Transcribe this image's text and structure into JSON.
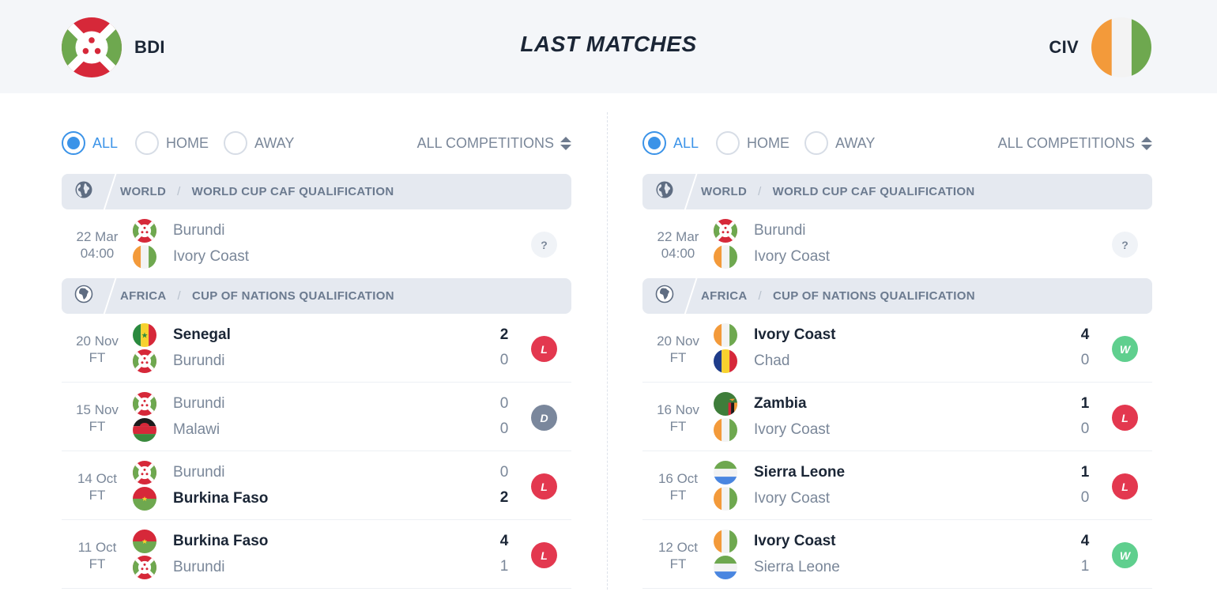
{
  "header": {
    "title": "LAST MATCHES",
    "home_code": "BDI",
    "away_code": "CIV"
  },
  "filters": {
    "all": "ALL",
    "home": "HOME",
    "away": "AWAY",
    "competitions": "ALL COMPETITIONS",
    "selected": "ALL"
  },
  "colors": {
    "accent": "#3b93e8",
    "loss": "#e3384f",
    "win": "#5fcf8e",
    "draw": "#7a879c"
  },
  "panels": {
    "left": {
      "groups": {
        "world": {
          "icon": "globe-icon",
          "region": "WORLD",
          "competition": "WORLD CUP CAF QUALIFICATION",
          "matches": [
            {
              "date": "22 Mar",
              "status": "04:00",
              "team1": "Burundi",
              "flag1": "burundi",
              "team2": "Ivory Coast",
              "flag2": "ivory-coast",
              "score1": "",
              "score2": "",
              "result": "?",
              "winner": 0
            }
          ]
        },
        "africa": {
          "icon": "africa-icon",
          "region": "AFRICA",
          "competition": "CUP OF NATIONS QUALIFICATION",
          "matches": [
            {
              "date": "20 Nov",
              "status": "FT",
              "team1": "Senegal",
              "flag1": "senegal",
              "team2": "Burundi",
              "flag2": "burundi",
              "score1": "2",
              "score2": "0",
              "result": "L",
              "winner": 1
            },
            {
              "date": "15 Nov",
              "status": "FT",
              "team1": "Burundi",
              "flag1": "burundi",
              "team2": "Malawi",
              "flag2": "malawi",
              "score1": "0",
              "score2": "0",
              "result": "D",
              "winner": 0
            },
            {
              "date": "14 Oct",
              "status": "FT",
              "team1": "Burundi",
              "flag1": "burundi",
              "team2": "Burkina Faso",
              "flag2": "burkina-faso",
              "score1": "0",
              "score2": "2",
              "result": "L",
              "winner": 2
            },
            {
              "date": "11 Oct",
              "status": "FT",
              "team1": "Burkina Faso",
              "flag1": "burkina-faso",
              "team2": "Burundi",
              "flag2": "burundi",
              "score1": "4",
              "score2": "1",
              "result": "L",
              "winner": 1
            }
          ]
        }
      }
    },
    "right": {
      "groups": {
        "world": {
          "icon": "globe-icon",
          "region": "WORLD",
          "competition": "WORLD CUP CAF QUALIFICATION",
          "matches": [
            {
              "date": "22 Mar",
              "status": "04:00",
              "team1": "Burundi",
              "flag1": "burundi",
              "team2": "Ivory Coast",
              "flag2": "ivory-coast",
              "score1": "",
              "score2": "",
              "result": "?",
              "winner": 0
            }
          ]
        },
        "africa": {
          "icon": "africa-icon",
          "region": "AFRICA",
          "competition": "CUP OF NATIONS QUALIFICATION",
          "matches": [
            {
              "date": "20 Nov",
              "status": "FT",
              "team1": "Ivory Coast",
              "flag1": "ivory-coast",
              "team2": "Chad",
              "flag2": "chad",
              "score1": "4",
              "score2": "0",
              "result": "W",
              "winner": 1
            },
            {
              "date": "16 Nov",
              "status": "FT",
              "team1": "Zambia",
              "flag1": "zambia",
              "team2": "Ivory Coast",
              "flag2": "ivory-coast",
              "score1": "1",
              "score2": "0",
              "result": "L",
              "winner": 1
            },
            {
              "date": "16 Oct",
              "status": "FT",
              "team1": "Sierra Leone",
              "flag1": "sierra-leone",
              "team2": "Ivory Coast",
              "flag2": "ivory-coast",
              "score1": "1",
              "score2": "0",
              "result": "L",
              "winner": 1
            },
            {
              "date": "12 Oct",
              "status": "FT",
              "team1": "Ivory Coast",
              "flag1": "ivory-coast",
              "team2": "Sierra Leone",
              "flag2": "sierra-leone",
              "score1": "4",
              "score2": "1",
              "result": "W",
              "winner": 1
            }
          ]
        }
      }
    }
  }
}
